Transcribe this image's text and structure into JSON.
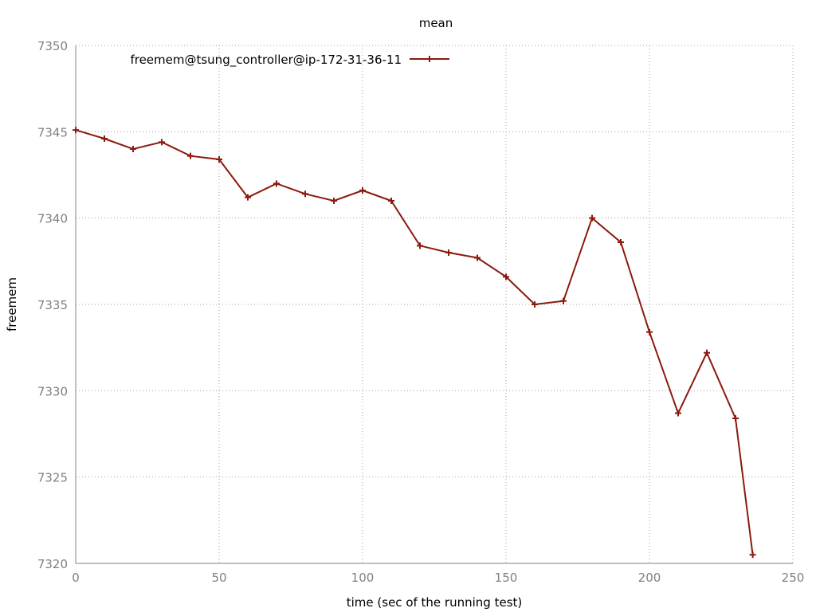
{
  "chart_data": {
    "type": "line",
    "title": "mean",
    "xlabel": "time (sec of the running test)",
    "ylabel": "freemem",
    "xlim": [
      0,
      250
    ],
    "ylim": [
      7320,
      7350
    ],
    "xticks": [
      0,
      50,
      100,
      150,
      200,
      250
    ],
    "yticks": [
      7320,
      7325,
      7330,
      7335,
      7340,
      7345,
      7350
    ],
    "grid": true,
    "legend_position": "top-left",
    "series": [
      {
        "name": "freemem@tsung_controller@ip-172-31-36-11",
        "color": "#8b1a0e",
        "marker": "plus",
        "x": [
          0,
          10,
          20,
          30,
          40,
          50,
          60,
          70,
          80,
          90,
          100,
          110,
          120,
          130,
          140,
          150,
          160,
          170,
          180,
          190,
          200,
          210,
          220,
          230,
          236
        ],
        "y": [
          7345.1,
          7344.6,
          7344.0,
          7344.4,
          7343.6,
          7343.4,
          7341.2,
          7342.0,
          7341.4,
          7341.0,
          7341.6,
          7341.0,
          7338.4,
          7338.0,
          7337.7,
          7336.6,
          7335.0,
          7335.2,
          7340.0,
          7338.6,
          7333.4,
          7328.7,
          7332.2,
          7328.4,
          7320.5
        ]
      }
    ]
  }
}
